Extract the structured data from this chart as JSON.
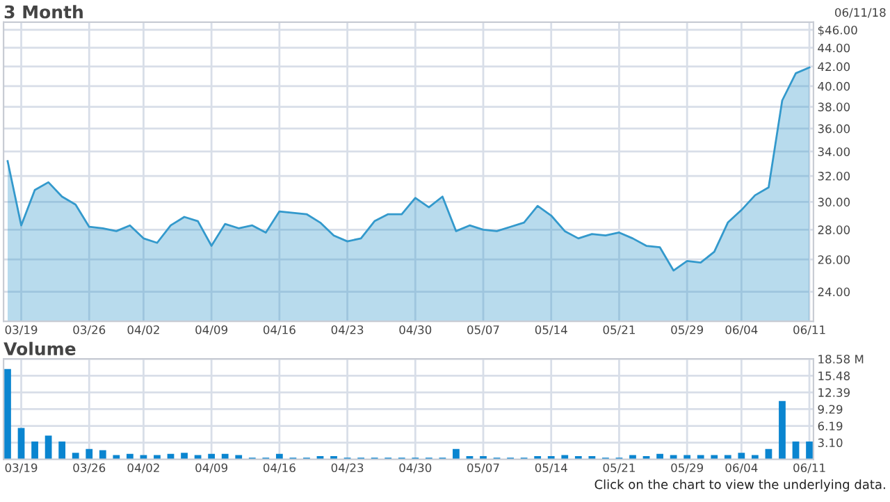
{
  "chart_data": [
    {
      "type": "area",
      "title": "3 Month",
      "annotations": [
        "06/11/18"
      ],
      "categories": [
        null,
        "03/19",
        null,
        null,
        null,
        null,
        "03/26",
        null,
        null,
        null,
        "04/02",
        null,
        null,
        null,
        null,
        "04/09",
        null,
        null,
        null,
        null,
        "04/16",
        null,
        null,
        null,
        null,
        "04/23",
        null,
        null,
        null,
        null,
        "04/30",
        null,
        null,
        null,
        null,
        "05/07",
        null,
        null,
        null,
        null,
        "05/14",
        null,
        null,
        null,
        null,
        "05/21",
        null,
        null,
        null,
        null,
        "05/29",
        null,
        null,
        null,
        "06/04",
        null,
        null,
        null,
        null,
        "06/11"
      ],
      "series": [
        {
          "color": "#3399cc",
          "values": [
            33.2,
            28.3,
            30.9,
            31.5,
            30.4,
            29.8,
            28.2,
            28.1,
            27.9,
            28.3,
            27.4,
            27.1,
            28.3,
            28.9,
            28.6,
            26.9,
            28.4,
            28.1,
            28.3,
            27.8,
            29.3,
            29.2,
            29.1,
            28.5,
            27.6,
            27.2,
            27.4,
            28.6,
            29.1,
            29.1,
            30.3,
            29.6,
            30.4,
            27.9,
            28.3,
            28.0,
            27.9,
            28.2,
            28.5,
            29.7,
            29.0,
            27.9,
            27.4,
            27.7,
            27.6,
            27.8,
            27.4,
            26.9,
            26.8,
            25.3,
            25.9,
            25.8,
            26.5,
            28.5,
            29.4,
            30.5,
            31.1,
            38.6,
            41.3,
            41.9
          ]
        }
      ],
      "log": true,
      "ylim": [
        22.3,
        46.9
      ],
      "yticks": [
        {
          "value": 24,
          "label": "24.00"
        },
        {
          "value": 26,
          "label": "26.00"
        },
        {
          "value": 28,
          "label": "28.00"
        },
        {
          "value": 30,
          "label": "30.00"
        },
        {
          "value": 32,
          "label": "32.00"
        },
        {
          "value": 34,
          "label": "34.00"
        },
        {
          "value": 36,
          "label": "36.00"
        },
        {
          "value": 38,
          "label": "38.00"
        },
        {
          "value": 40,
          "label": "40.00"
        },
        {
          "value": 42,
          "label": "42.00"
        },
        {
          "value": 44,
          "label": "44.00"
        },
        {
          "value": 46,
          "label": "$46.00"
        }
      ],
      "grid": true
    },
    {
      "type": "bar",
      "title": "Volume",
      "annotations": [
        "Click on the chart to view the underlying data."
      ],
      "categories": [
        null,
        "03/19",
        null,
        null,
        null,
        null,
        "03/26",
        null,
        null,
        null,
        "04/02",
        null,
        null,
        null,
        null,
        "04/09",
        null,
        null,
        null,
        null,
        "04/16",
        null,
        null,
        null,
        null,
        "04/23",
        null,
        null,
        null,
        null,
        "04/30",
        null,
        null,
        null,
        null,
        "05/07",
        null,
        null,
        null,
        null,
        "05/14",
        null,
        null,
        null,
        null,
        "05/21",
        null,
        null,
        null,
        null,
        "05/29",
        null,
        null,
        null,
        "06/04",
        null,
        null,
        null,
        null,
        "06/11"
      ],
      "series": [
        {
          "color": "#0a85d0",
          "values": [
            16.7,
            5.8,
            3.3,
            4.4,
            3.3,
            1.2,
            1.9,
            1.7,
            0.8,
            1.0,
            0.8,
            0.8,
            1.0,
            1.2,
            0.8,
            1.0,
            1.0,
            0.8,
            0.3,
            0.3,
            1.0,
            0.3,
            0.3,
            0.6,
            0.6,
            0.3,
            0.3,
            0.3,
            0.3,
            0.3,
            0.3,
            0.3,
            0.3,
            1.9,
            0.6,
            0.6,
            0.3,
            0.3,
            0.3,
            0.6,
            0.6,
            0.8,
            0.6,
            0.6,
            0.3,
            0.3,
            0.8,
            0.6,
            1.0,
            0.8,
            0.8,
            0.8,
            0.8,
            0.8,
            1.2,
            0.8,
            1.9,
            10.8,
            3.3,
            3.3
          ]
        }
      ],
      "ylim": [
        0,
        18.58
      ],
      "yticks": [
        {
          "value": 3.1,
          "label": "3.10"
        },
        {
          "value": 6.19,
          "label": "6.19"
        },
        {
          "value": 9.29,
          "label": "9.29"
        },
        {
          "value": 12.39,
          "label": "12.39"
        },
        {
          "value": 15.48,
          "label": "15.48"
        },
        {
          "value": 18.58,
          "label": "18.58 M"
        }
      ],
      "grid": true
    }
  ]
}
